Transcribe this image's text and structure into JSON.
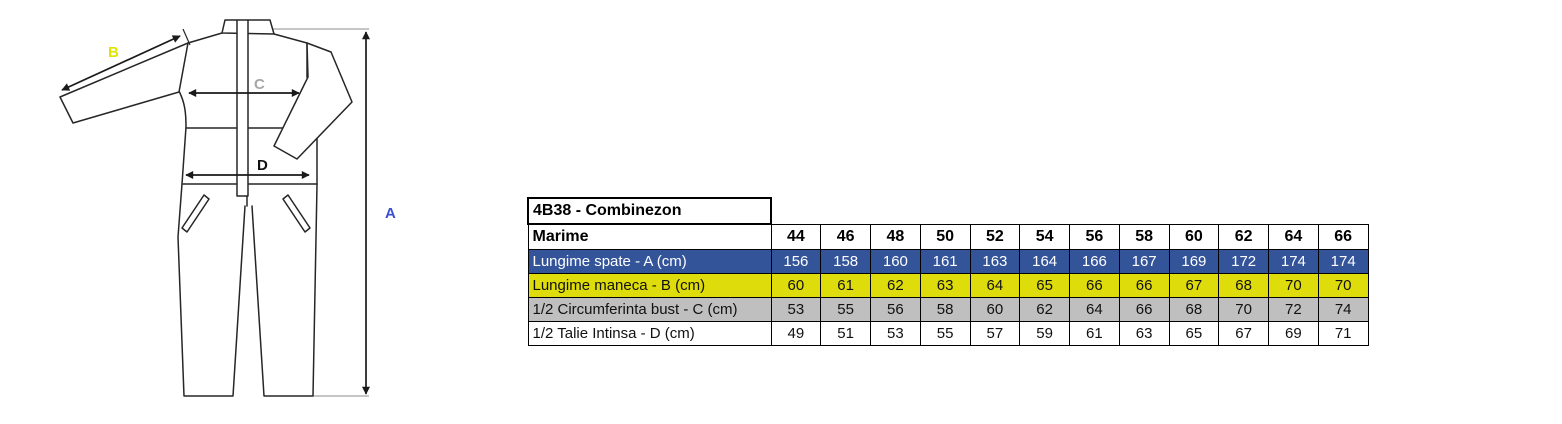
{
  "drawing": {
    "labels": {
      "a": "A",
      "b": "B",
      "c": "C",
      "d": "D"
    },
    "label_colors": {
      "a": "#3B4EDA",
      "b": "#E3E300",
      "c": "#A6A6A6",
      "d": "#111111"
    }
  },
  "colors": {
    "row_a_bg": "#34549A",
    "row_a_fg": "#FFFFFF",
    "row_b_bg": "#DFDC0C",
    "row_b_fg": "#111111",
    "row_c_bg": "#BFBFBF",
    "row_c_fg": "#111111",
    "row_d_bg": "#FFFFFF",
    "row_d_fg": "#111111",
    "table_border": "#000000"
  },
  "table": {
    "title": "4B38 - Combinezon",
    "size_header_label": "Marime",
    "sizes": [
      44,
      46,
      48,
      50,
      52,
      54,
      56,
      58,
      60,
      62,
      64,
      66
    ],
    "rows": [
      {
        "label": "Lungime spate - A (cm)",
        "values": [
          156,
          158,
          160,
          161,
          163,
          164,
          166,
          167,
          169,
          172,
          174,
          174
        ],
        "bg": "#34549A",
        "fg": "#FFFFFF"
      },
      {
        "label": "Lungime maneca - B (cm)",
        "values": [
          60,
          61,
          62,
          63,
          64,
          65,
          66,
          66,
          67,
          68,
          70,
          70
        ],
        "bg": "#DFDC0C",
        "fg": "#111111"
      },
      {
        "label": "1/2 Circumferinta bust - C (cm)",
        "values": [
          53,
          55,
          56,
          58,
          60,
          62,
          64,
          66,
          68,
          70,
          72,
          74
        ],
        "bg": "#BFBFBF",
        "fg": "#111111"
      },
      {
        "label": "1/2 Talie Intinsa - D (cm)",
        "values": [
          49,
          51,
          53,
          55,
          57,
          59,
          61,
          63,
          65,
          67,
          69,
          71
        ],
        "bg": "#FFFFFF",
        "fg": "#111111"
      }
    ]
  }
}
